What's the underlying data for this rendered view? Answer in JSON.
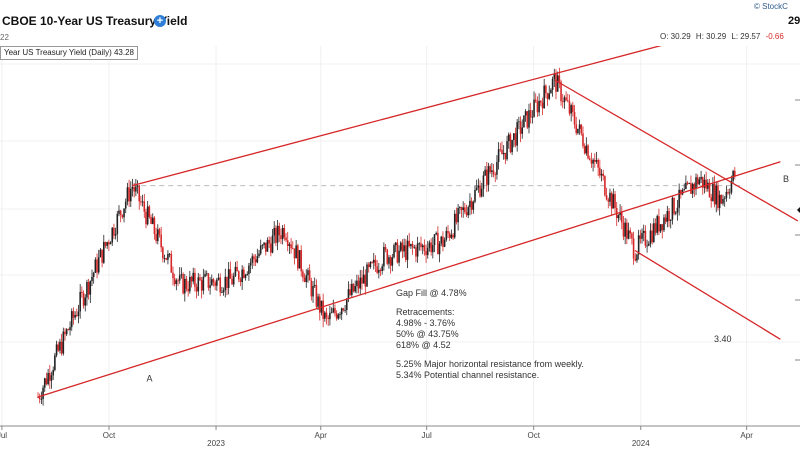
{
  "header": {
    "title": "CBOE 10-Year US Treasury Yield",
    "date_fragment": "22",
    "brand": "© StockC",
    "last_price": "29",
    "ohlc": {
      "open": "O: 30.29",
      "high": "H: 30.29",
      "low": "L: 29.57",
      "change": "-0.66"
    }
  },
  "legend": "Year US Treasury Yield (Daily) 43.28",
  "chart_data": {
    "type": "candlestick",
    "x_tick_labels": [
      "Jul",
      "Oct",
      "2023",
      "Apr",
      "Jul",
      "Oct",
      "2024",
      "Apr"
    ],
    "price_path_approx": [
      {
        "date": "2022-08-01",
        "value": 27.5
      },
      {
        "date": "2022-10-21",
        "value": 42.5
      },
      {
        "date": "2022-12-01",
        "value": 35.5
      },
      {
        "date": "2023-01-15",
        "value": 35.8
      },
      {
        "date": "2023-03-01",
        "value": 39.5
      },
      {
        "date": "2023-04-06",
        "value": 32.8
      },
      {
        "date": "2023-05-25",
        "value": 37.5
      },
      {
        "date": "2023-07-15",
        "value": 38.5
      },
      {
        "date": "2023-08-20",
        "value": 43.0
      },
      {
        "date": "2023-10-19",
        "value": 50.0
      },
      {
        "date": "2023-11-20",
        "value": 44.5
      },
      {
        "date": "2023-12-27",
        "value": 37.9
      },
      {
        "date": "2024-02-20",
        "value": 43.0
      },
      {
        "date": "2024-03-10",
        "value": 41.5
      },
      {
        "date": "2024-03-22",
        "value": 43.3
      }
    ],
    "trendlines": [
      {
        "name": "channel-upper",
        "points": [
          [
            "2022-10-21",
            42.5
          ],
          [
            "2024-03-25",
            53.9
          ]
        ]
      },
      {
        "name": "channel-lower",
        "points": [
          [
            "2022-08-01",
            27.5
          ],
          [
            "2024-04-30",
            44.2
          ]
        ]
      },
      {
        "name": "downtrend-upper",
        "points": [
          [
            "2023-10-19",
            50.0
          ],
          [
            "2024-05-15",
            40.0
          ]
        ]
      },
      {
        "name": "downtrend-lower",
        "points": [
          [
            "2023-12-27",
            37.9
          ],
          [
            "2024-04-30",
            31.6
          ]
        ]
      }
    ],
    "horizontal_line": {
      "value": 42.5,
      "style": "dashed"
    },
    "annotations": {
      "label_a": "A",
      "label_b": "B",
      "target": "3.40",
      "notes": [
        "Gap Fill @ 4.78%",
        "",
        "Retracements:",
        "4.98% - 3.76%",
        "50% @ 43.75%",
        "618% @ 4.52",
        "",
        "5.25% Major horizontal resistance from weekly.",
        "5.34% Potential channel resistance."
      ]
    },
    "colors": {
      "up": "#222222",
      "down": "#d62728",
      "trendline": "#d62728",
      "dashed": "#bbbbbb"
    },
    "grid": true
  }
}
